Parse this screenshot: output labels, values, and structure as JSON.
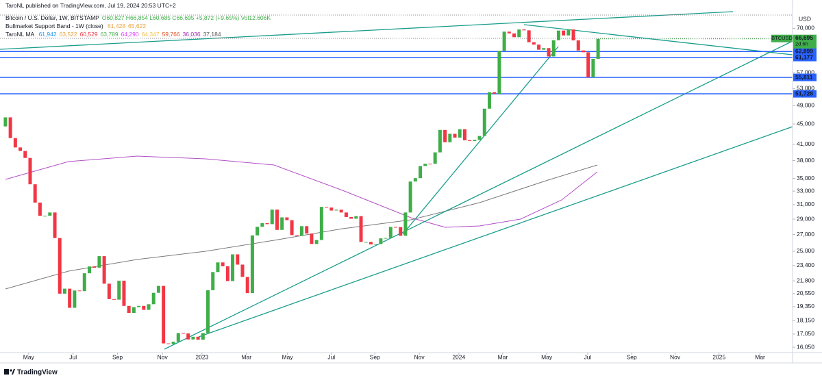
{
  "header": {
    "publisher": "TaroNL published on TradingView.com, Jul 19, 2024 20:53 UTC+2",
    "symbol": "Bitcoin / U.S. Dollar, 1W, BITSTAMP",
    "ohlc": "O60,827 H66,854 L60,685 C66,695 +5,872 (+9.65%) Vol12.606K",
    "band_name": "Bullmarket Support Band - 1W (close)",
    "band_values": [
      "61,428",
      "65,622"
    ],
    "band_colors": [
      "#e8a33d",
      "#e8a33d"
    ],
    "ma_name": "TaroNL MA",
    "ma_values": [
      "61,942",
      "63,522",
      "60,529",
      "63,789",
      "64,290",
      "64,347",
      "59,766",
      "36,036",
      "37,184"
    ],
    "ma_colors": [
      "#2196f3",
      "#e8a33d",
      "#f23645",
      "#4caf50",
      "#e040fb",
      "#f5c242",
      "#e64a19",
      "#9c27b0",
      "#555555"
    ]
  },
  "price_tag": {
    "symbol": "BTCUSD",
    "price": "66,695",
    "countdown": "2d 6h"
  },
  "currency": "USD",
  "footer": "TradingView",
  "chart_data": {
    "type": "candlestick",
    "open": 44500,
    "closes": [
      46400,
      42160,
      40380,
      39740,
      38470,
      34060,
      31300,
      29440,
      29450,
      29900,
      26570,
      20550,
      21030,
      19250,
      20850,
      20790,
      22580,
      23300,
      23170,
      24440,
      21520,
      20040,
      19990,
      21820,
      19420,
      18800,
      19310,
      19420,
      19070,
      19570,
      20630,
      21300,
      16330,
      16280,
      16460,
      17130,
      17100,
      16630,
      16840,
      16610,
      17130,
      20880,
      22710,
      23740,
      23320,
      21780,
      24640,
      23500,
      22200,
      20600,
      26900,
      27990,
      28470,
      28330,
      30300,
      27590,
      29230,
      28860,
      26930,
      26850,
      28070,
      27130,
      25850,
      26330,
      30690,
      30590,
      30170,
      30290,
      29900,
      29280,
      29050,
      29400,
      26100,
      26100,
      25800,
      25840,
      26530,
      26580,
      27970,
      27950,
      26850,
      29900,
      34500,
      35040,
      37060,
      37460,
      37450,
      39470,
      43780,
      41370,
      43010,
      42260,
      43930,
      41730,
      41580,
      41820,
      42580,
      48300,
      52140,
      51730,
      63110,
      68950,
      68390,
      67210,
      69650,
      69360,
      65660,
      64940,
      63420,
      63900,
      61480,
      66270,
      69290,
      67750,
      69650,
      66220,
      63210,
      62680,
      55850,
      60800,
      66695
    ],
    "up_color": "#3fae49",
    "down_color": "#f23645",
    "log_scale": true,
    "ylim": [
      15650,
      79800
    ],
    "yticks": [
      {
        "value": 16050,
        "label": "16,050"
      },
      {
        "value": 17050,
        "label": "17,050"
      },
      {
        "value": 18150,
        "label": "18,150"
      },
      {
        "value": 19350,
        "label": "19,350"
      },
      {
        "value": 20550,
        "label": "20,550"
      },
      {
        "value": 21800,
        "label": "21,800"
      },
      {
        "value": 23400,
        "label": "23,400"
      },
      {
        "value": 25000,
        "label": "25,000"
      },
      {
        "value": 27000,
        "label": "27,000"
      },
      {
        "value": 29000,
        "label": "29,000"
      },
      {
        "value": 31000,
        "label": "31,000"
      },
      {
        "value": 33000,
        "label": "33,000"
      },
      {
        "value": 35000,
        "label": "35,000"
      },
      {
        "value": 38000,
        "label": "38,000"
      },
      {
        "value": 41000,
        "label": "41,000"
      },
      {
        "value": 45000,
        "label": "45,000"
      },
      {
        "value": 49000,
        "label": "49,000"
      },
      {
        "value": 53000,
        "label": "53,000"
      },
      {
        "value": 57000,
        "label": "57,000"
      },
      {
        "value": 70000,
        "label": "70,000"
      }
    ],
    "xlim": [
      -1.1,
      159.1
    ],
    "xticks": [
      {
        "value": 4.7,
        "label": "May"
      },
      {
        "value": 13.7,
        "label": "Jul"
      },
      {
        "value": 22.7,
        "label": "Sep"
      },
      {
        "value": 31.8,
        "label": "Nov"
      },
      {
        "value": 39.8,
        "label": "2023"
      },
      {
        "value": 48.8,
        "label": "Mar"
      },
      {
        "value": 57.1,
        "label": "May"
      },
      {
        "value": 66.0,
        "label": "Jul"
      },
      {
        "value": 74.8,
        "label": "Sep"
      },
      {
        "value": 83.8,
        "label": "Nov"
      },
      {
        "value": 91.8,
        "label": "2024"
      },
      {
        "value": 100.7,
        "label": "Mar"
      },
      {
        "value": 109.6,
        "label": "May"
      },
      {
        "value": 117.9,
        "label": "Jul"
      },
      {
        "value": 126.8,
        "label": "Sep"
      },
      {
        "value": 135.6,
        "label": "Nov"
      },
      {
        "value": 144.5,
        "label": "2025"
      },
      {
        "value": 152.8,
        "label": "Mar"
      }
    ],
    "level_color": "#2962ff",
    "levels": [
      {
        "value": 62899,
        "label": "62,899"
      },
      {
        "value": 61177,
        "label": "61,177"
      },
      {
        "value": 55811,
        "label": "55,811"
      },
      {
        "value": 51728,
        "label": "51,728"
      }
    ]
  }
}
